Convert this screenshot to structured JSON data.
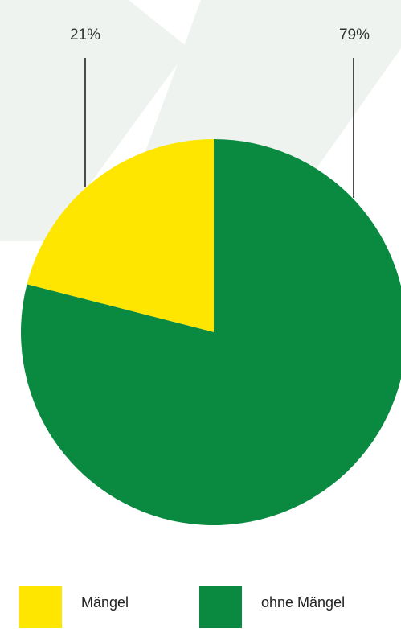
{
  "chart_data": {
    "type": "pie",
    "slices": [
      {
        "label": "Mängel",
        "value": 21,
        "display": "21%",
        "color": "#ffe600"
      },
      {
        "label": "ohne Mängel",
        "value": 79,
        "display": "79%",
        "color": "#0a8a40"
      }
    ],
    "legend_position": "bottom"
  },
  "colors": {
    "background_decoration": "#eef3ef",
    "leader_line": "#222222"
  }
}
